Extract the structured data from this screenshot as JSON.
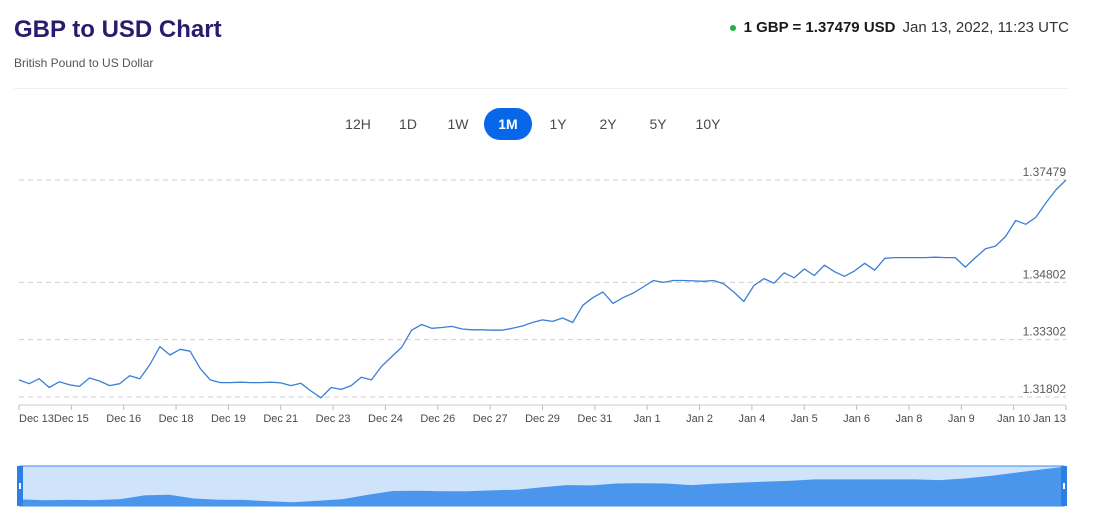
{
  "header": {
    "title": "GBP to USD Chart",
    "subtitle": "British Pound to US Dollar",
    "rate": "1 GBP = 1.37479 USD",
    "timestamp": "Jan 13, 2022, 11:23 UTC",
    "status_color": "#1fb141"
  },
  "tabs": [
    {
      "label": "12H",
      "active": false
    },
    {
      "label": "1D",
      "active": false
    },
    {
      "label": "1W",
      "active": false
    },
    {
      "label": "1M",
      "active": true
    },
    {
      "label": "1Y",
      "active": false
    },
    {
      "label": "2Y",
      "active": false
    },
    {
      "label": "5Y",
      "active": false
    },
    {
      "label": "10Y",
      "active": false
    }
  ],
  "colors": {
    "accent": "#0866e8",
    "line": "#3b7fd6",
    "navigator_fill": "#4a96ec",
    "navigator_window": "#cfe3fb"
  },
  "chart_data": {
    "type": "line",
    "title": "GBP to USD Chart",
    "x_axis": "date",
    "x_ticks": [
      "Dec 13",
      "Dec 15",
      "Dec 16",
      "Dec 18",
      "Dec 19",
      "Dec 21",
      "Dec 23",
      "Dec 24",
      "Dec 26",
      "Dec 27",
      "Dec 29",
      "Dec 31",
      "Jan 1",
      "Jan 2",
      "Jan 4",
      "Jan 5",
      "Jan 6",
      "Jan 8",
      "Jan 9",
      "Jan 10",
      "Jan 13"
    ],
    "y_ticks": [
      "1.37479",
      "1.34802",
      "1.33302",
      "1.31802"
    ],
    "y_tick_values": [
      1.37479,
      1.34802,
      1.33302,
      1.31802
    ],
    "ylim": [
      1.31802,
      1.37479
    ],
    "grid": "horizontal dashed",
    "series": [
      {
        "values": [
          1.3225,
          1.3215,
          1.3228,
          1.3205,
          1.322,
          1.3212,
          1.3208,
          1.323,
          1.3222,
          1.321,
          1.3215,
          1.3236,
          1.3228,
          1.3265,
          1.3312,
          1.329,
          1.3305,
          1.33,
          1.3255,
          1.3225,
          1.3218,
          1.3218,
          1.3219,
          1.3218,
          1.3218,
          1.3219,
          1.3217,
          1.321,
          1.3216,
          1.3196,
          1.3178,
          1.3205,
          1.32,
          1.321,
          1.3232,
          1.3225,
          1.326,
          1.3285,
          1.331,
          1.3355,
          1.337,
          1.336,
          1.3362,
          1.3365,
          1.3358,
          1.3356,
          1.3356,
          1.3355,
          1.3355,
          1.336,
          1.3366,
          1.3375,
          1.3382,
          1.3378,
          1.3387,
          1.3375,
          1.342,
          1.344,
          1.3455,
          1.3425,
          1.344,
          1.3452,
          1.3468,
          1.3485,
          1.348,
          1.3485,
          1.3485,
          1.3484,
          1.3483,
          1.3485,
          1.3476,
          1.3455,
          1.343,
          1.3472,
          1.349,
          1.3478,
          1.3505,
          1.3492,
          1.3515,
          1.3498,
          1.3525,
          1.3508,
          1.3496,
          1.351,
          1.353,
          1.3512,
          1.3543,
          1.3545,
          1.3545,
          1.3545,
          1.3545,
          1.3546,
          1.3545,
          1.3545,
          1.352,
          1.3545,
          1.3568,
          1.3575,
          1.36,
          1.3642,
          1.3632,
          1.365,
          1.3688,
          1.3722,
          1.3748
        ]
      }
    ],
    "navigator": {
      "values": [
        1.3225,
        1.3212,
        1.3218,
        1.3215,
        1.3228,
        1.329,
        1.33,
        1.324,
        1.3219,
        1.3218,
        1.3196,
        1.318,
        1.3205,
        1.323,
        1.33,
        1.336,
        1.3365,
        1.3356,
        1.3356,
        1.337,
        1.338,
        1.342,
        1.3455,
        1.345,
        1.348,
        1.3484,
        1.348,
        1.3455,
        1.3478,
        1.3495,
        1.351,
        1.3525,
        1.3545,
        1.3545,
        1.3545,
        1.3546,
        1.3545,
        1.3535,
        1.356,
        1.36,
        1.365,
        1.37,
        1.3748
      ]
    }
  }
}
